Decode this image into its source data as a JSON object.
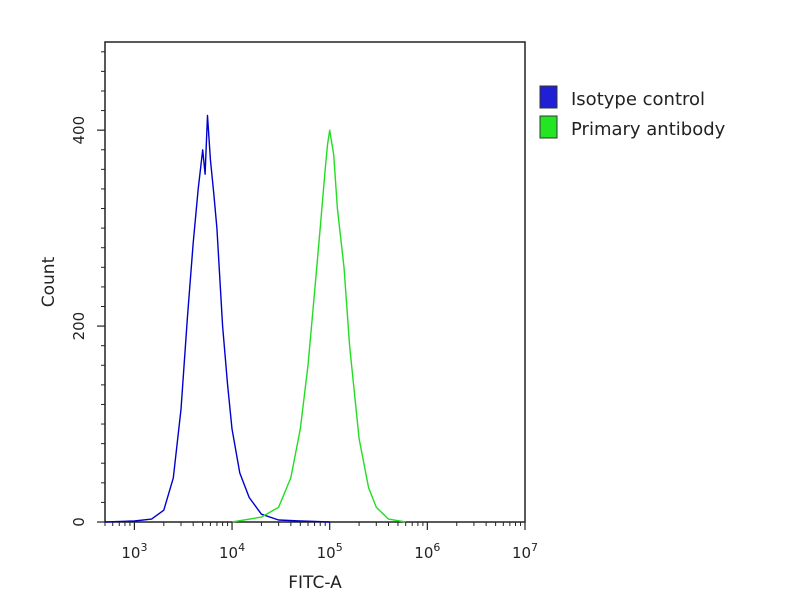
{
  "chart_data": {
    "type": "line",
    "xscale": "log",
    "xlabel": "FITC-A",
    "ylabel": "Count",
    "xlim": [
      500,
      10000000
    ],
    "ylim": [
      0,
      490
    ],
    "xticks": [
      {
        "value": 1000,
        "base": "10",
        "exp": "3"
      },
      {
        "value": 10000,
        "base": "10",
        "exp": "4"
      },
      {
        "value": 100000,
        "base": "10",
        "exp": "5"
      },
      {
        "value": 1000000,
        "base": "10",
        "exp": "6"
      },
      {
        "value": 10000000,
        "base": "10",
        "exp": "7"
      }
    ],
    "yticks": [
      {
        "value": 0,
        "label": "0"
      },
      {
        "value": 200,
        "label": "200"
      },
      {
        "value": 400,
        "label": "400"
      }
    ],
    "grid": false,
    "legend": "outside-right-top",
    "series": [
      {
        "name": "Isotype control",
        "color": "#0000cc",
        "legend_color": "#1f1fd6",
        "x": [
          500,
          1000,
          1500,
          2000,
          2500,
          3000,
          3500,
          4000,
          4500,
          5000,
          5300,
          5600,
          6000,
          6500,
          7000,
          8000,
          9000,
          10000,
          12000,
          15000,
          20000,
          30000,
          50000,
          100000
        ],
        "y": [
          0,
          1,
          3,
          12,
          45,
          115,
          210,
          285,
          340,
          380,
          355,
          415,
          370,
          335,
          300,
          200,
          140,
          95,
          50,
          25,
          8,
          2,
          1,
          0
        ]
      },
      {
        "name": "Primary antibody",
        "color": "#22dd22",
        "legend_color": "#22e622",
        "x": [
          10000,
          20000,
          30000,
          40000,
          50000,
          60000,
          70000,
          80000,
          90000,
          95000,
          100000,
          110000,
          120000,
          140000,
          160000,
          200000,
          250000,
          300000,
          400000,
          600000
        ],
        "y": [
          0,
          5,
          15,
          45,
          95,
          160,
          235,
          300,
          360,
          385,
          400,
          375,
          320,
          260,
          180,
          85,
          35,
          15,
          3,
          0
        ]
      }
    ]
  }
}
